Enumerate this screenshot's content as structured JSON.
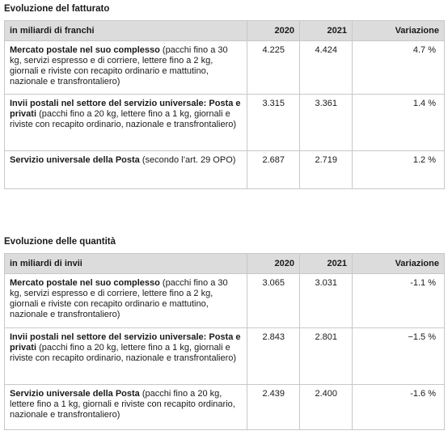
{
  "sections": [
    {
      "title": "Evoluzione del fatturato",
      "header": [
        "in miliardi di franchi",
        "2020",
        "2021",
        "Variazione"
      ],
      "rows": [
        {
          "title": "Mercato postale nel suo complesso",
          "note": "(pacchi fino a 30 kg, servizi espresso e di corriere, lettere fino a 2 kg, giornali e riviste con recapito ordinario e mattutino, nazionale e transfrontaliero)",
          "cells": [
            "4.225",
            "4.424",
            "4.7 %"
          ]
        },
        {
          "title": "Invii postali nel settore del servizio universale: Posta e privati",
          "note": "(pacchi fino a 20 kg, lettere fino a 1 kg, giornali e riviste con recapito ordinario, nazionale e transfrontaliero)",
          "cells": [
            "3.315",
            "3.361",
            "1.4 %"
          ]
        },
        {
          "title": "Servizio universale della Posta",
          "note": "(secondo l’art. 29 OPO)",
          "cells": [
            "2.687",
            "2.719",
            "1.2 %"
          ]
        }
      ]
    },
    {
      "title": "Evoluzione delle quantità",
      "header": [
        "in miliardi di invii",
        "2020",
        "2021",
        "Variazione"
      ],
      "rows": [
        {
          "title": "Mercato postale nel suo complesso",
          "note": "(pacchi fino a 30 kg, servizi espresso e di corriere, lettere fino a 2 kg, giornali e riviste con recapito ordinario e mattutino, nazionale e transfrontaliero)",
          "cells": [
            "3.065",
            "3.031",
            "-1.1 %"
          ]
        },
        {
          "title": "Invii postali nel settore del servizio universale: Posta e privati",
          "note": "(pacchi fino a 20 kg, lettere fino a 1 kg, giornali e riviste con recapito ordinario, nazionale e transfrontaliero)",
          "cells": [
            "2.843",
            "2.801",
            "−1.5 %"
          ]
        },
        {
          "title": "Servizio universale della Posta",
          "note": "(pacchi fino a 20 kg, lettere fino a 1 kg, giornali e riviste con recapito ordinario, nazionale e transfrontaliero)",
          "cells": [
            "2.439",
            "2.400",
            "-1.6 %"
          ]
        }
      ]
    }
  ]
}
